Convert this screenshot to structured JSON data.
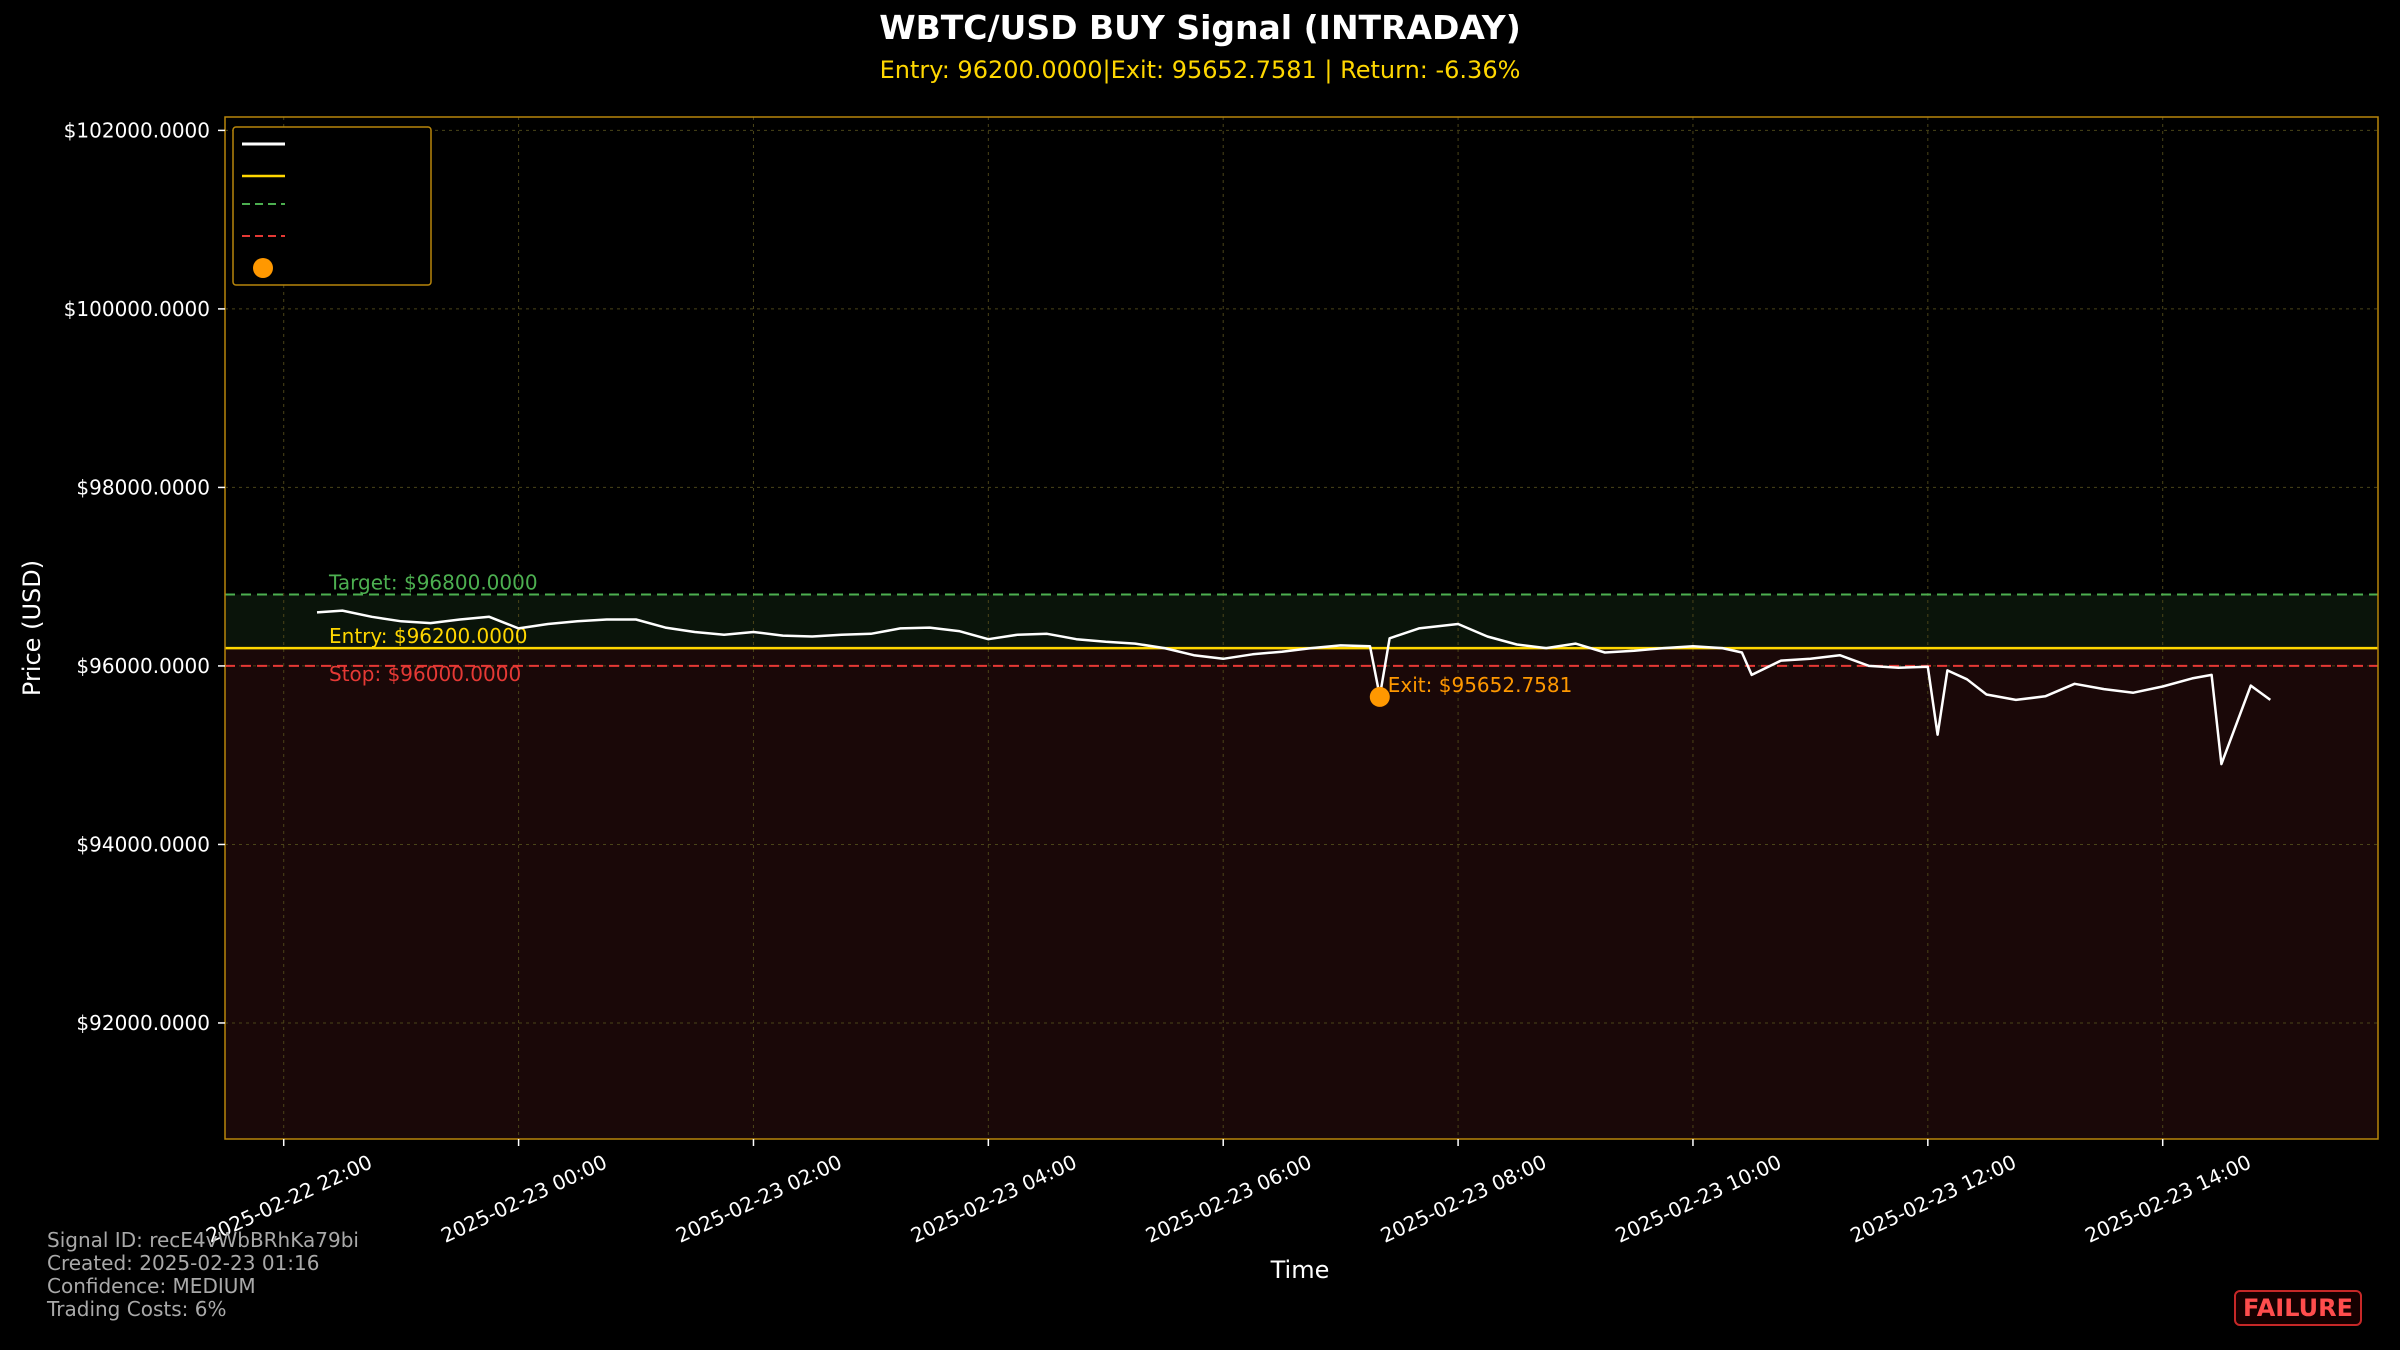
{
  "header": {
    "title": "WBTC/USD BUY Signal (INTRADAY)",
    "subtitle": "Entry: 96200.0000|Exit: 95652.7581 | Return: -6.36%"
  },
  "footer": {
    "signal_id": "Signal ID: recE4vWbBRhKa79bi",
    "created": "Created: 2025-02-23 01:16",
    "confidence": "Confidence: MEDIUM",
    "trading_costs": "Trading Costs: 6%",
    "result_badge": "FAILURE"
  },
  "colors": {
    "price": "#ffffff",
    "entry": "#ffd700",
    "target": "#4caf50",
    "stop": "#e53935",
    "exit": "#ff9800",
    "profit_zone": "#0a140a",
    "loss_zone": "#1a0808",
    "frame": "#b8860b"
  },
  "chart_data": {
    "type": "line",
    "title": "WBTC/USD BUY Signal (INTRADAY)",
    "xlabel": "Time",
    "ylabel": "Price (USD)",
    "ylim": [
      90700,
      102150
    ],
    "xlim": [
      "2025-02-22 21:30",
      "2025-02-23 15:50"
    ],
    "grid": true,
    "legend_placement": "top-left",
    "y_ticks": [
      "$92000.0000",
      "$94000.0000",
      "$96000.0000",
      "$98000.0000",
      "$100000.0000",
      "$102000.0000"
    ],
    "y_tick_values": [
      92000,
      94000,
      96000,
      98000,
      100000,
      102000
    ],
    "x_ticks": [
      "2025-02-22 22:00",
      "2025-02-23 00:00",
      "2025-02-23 02:00",
      "2025-02-23 04:00",
      "2025-02-23 06:00",
      "2025-02-23 08:00",
      "2025-02-23 10:00",
      "2025-02-23 12:00",
      "2025-02-23 14:00"
    ],
    "levels": {
      "target": {
        "value": 96800,
        "label": "Target: $96800.0000"
      },
      "entry": {
        "value": 96200,
        "label": "Entry: $96200.0000"
      },
      "stop": {
        "value": 96000,
        "label": "Stop: $96000.0000"
      }
    },
    "exit_point": {
      "time": "2025-02-23 07:20",
      "value": 95652.7581,
      "label": "Exit: $95652.7581"
    },
    "series": [
      {
        "x": [
          "2025-02-22 22:17",
          "2025-02-22 22:30",
          "2025-02-22 22:45",
          "2025-02-22 23:00",
          "2025-02-22 23:15",
          "2025-02-22 23:30",
          "2025-02-22 23:45",
          "2025-02-23 00:00",
          "2025-02-23 00:15",
          "2025-02-23 00:30",
          "2025-02-23 00:45",
          "2025-02-23 01:00",
          "2025-02-23 01:15",
          "2025-02-23 01:30",
          "2025-02-23 01:45",
          "2025-02-23 02:00",
          "2025-02-23 02:15",
          "2025-02-23 02:30",
          "2025-02-23 02:45",
          "2025-02-23 03:00",
          "2025-02-23 03:15",
          "2025-02-23 03:30",
          "2025-02-23 03:45",
          "2025-02-23 04:00",
          "2025-02-23 04:15",
          "2025-02-23 04:30",
          "2025-02-23 04:45",
          "2025-02-23 05:00",
          "2025-02-23 05:15",
          "2025-02-23 05:30",
          "2025-02-23 05:45",
          "2025-02-23 06:00",
          "2025-02-23 06:15",
          "2025-02-23 06:30",
          "2025-02-23 06:45",
          "2025-02-23 07:00",
          "2025-02-23 07:15",
          "2025-02-23 07:20",
          "2025-02-23 07:25",
          "2025-02-23 07:40",
          "2025-02-23 08:00",
          "2025-02-23 08:15",
          "2025-02-23 08:30",
          "2025-02-23 08:45",
          "2025-02-23 09:00",
          "2025-02-23 09:15",
          "2025-02-23 09:30",
          "2025-02-23 09:45",
          "2025-02-23 10:00",
          "2025-02-23 10:15",
          "2025-02-23 10:25",
          "2025-02-23 10:30",
          "2025-02-23 10:45",
          "2025-02-23 11:00",
          "2025-02-23 11:15",
          "2025-02-23 11:30",
          "2025-02-23 11:45",
          "2025-02-23 12:00",
          "2025-02-23 12:05",
          "2025-02-23 12:10",
          "2025-02-23 12:20",
          "2025-02-23 12:30",
          "2025-02-23 12:45",
          "2025-02-23 13:00",
          "2025-02-23 13:15",
          "2025-02-23 13:30",
          "2025-02-23 13:45",
          "2025-02-23 14:00",
          "2025-02-23 14:15",
          "2025-02-23 14:25",
          "2025-02-23 14:30",
          "2025-02-23 14:45",
          "2025-02-23 14:55"
        ],
        "values": [
          96600,
          96620,
          96550,
          96500,
          96480,
          96520,
          96550,
          96420,
          96470,
          96500,
          96520,
          96520,
          96430,
          96380,
          96350,
          96380,
          96340,
          96330,
          96350,
          96360,
          96420,
          96430,
          96390,
          96300,
          96350,
          96360,
          96300,
          96270,
          96250,
          96200,
          96120,
          96080,
          96130,
          96160,
          96200,
          96230,
          96220,
          95660,
          96310,
          96420,
          96470,
          96330,
          96240,
          96200,
          96250,
          96150,
          96170,
          96200,
          96220,
          96200,
          96150,
          95900,
          96060,
          96080,
          96120,
          96000,
          95980,
          95990,
          95230,
          95950,
          95850,
          95680,
          95620,
          95660,
          95800,
          95740,
          95700,
          95770,
          95860,
          95900,
          94900,
          95780,
          95620
        ]
      }
    ]
  }
}
